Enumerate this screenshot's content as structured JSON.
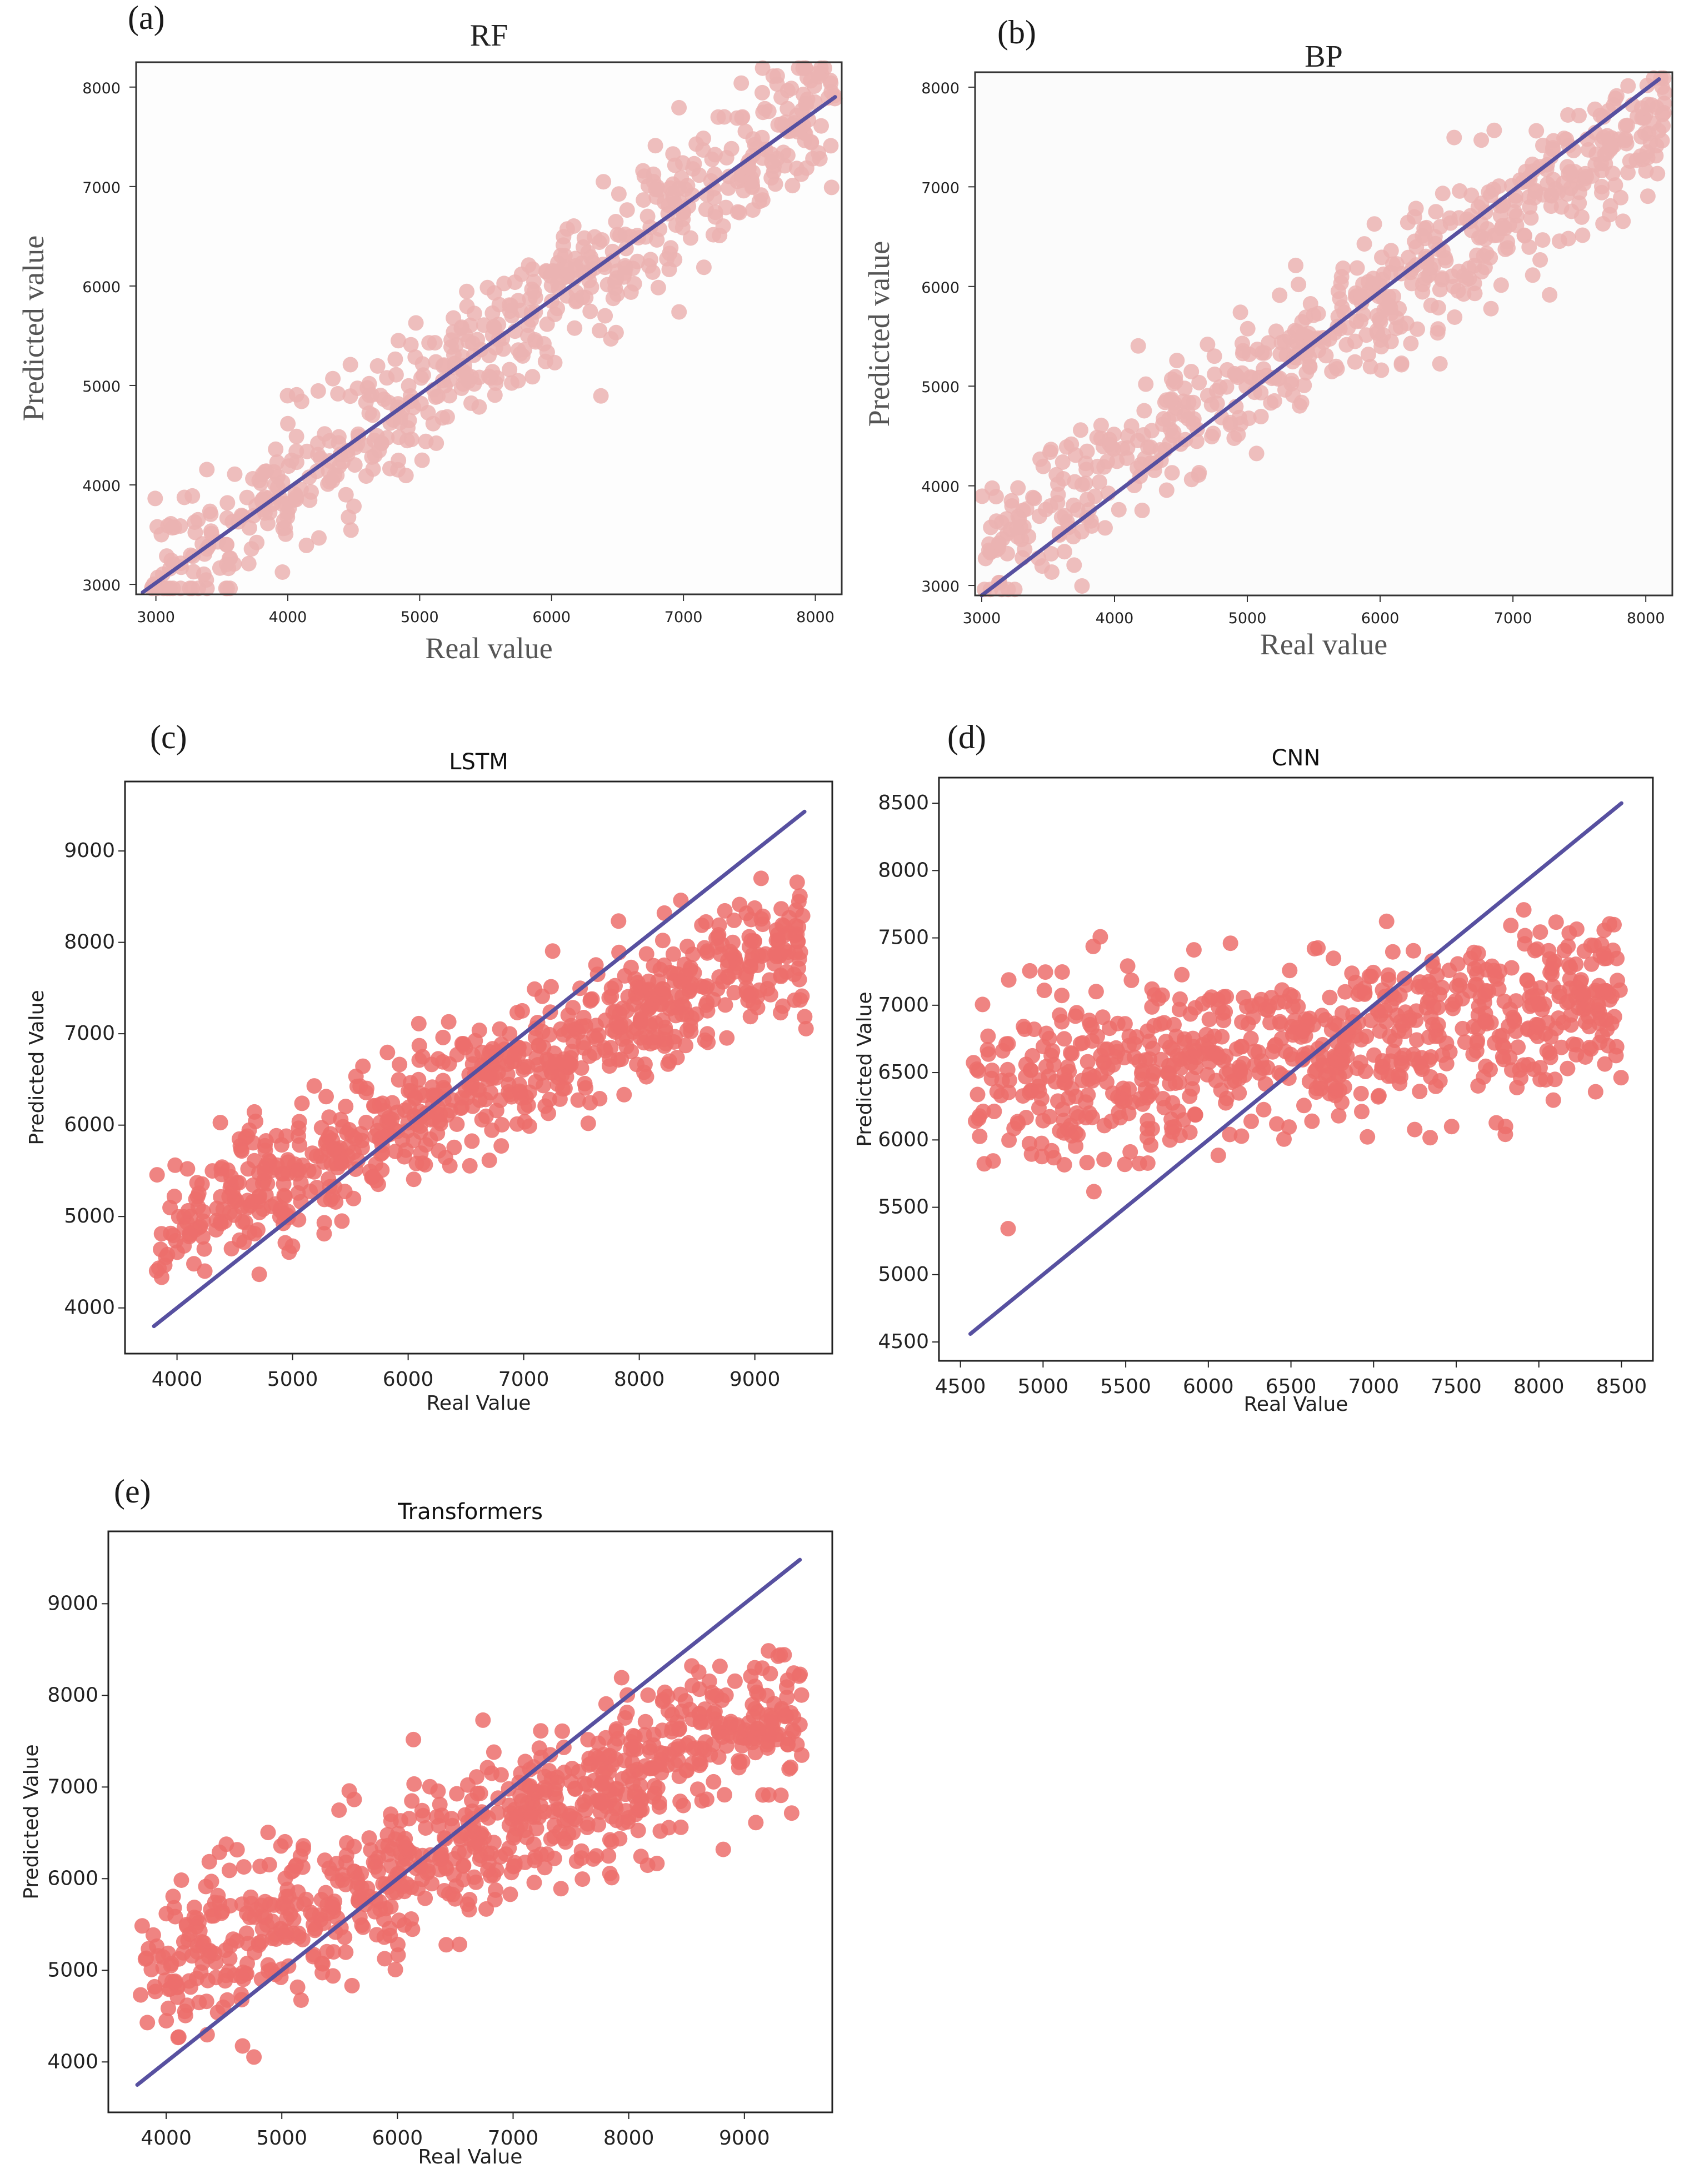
{
  "chart_data": [
    {
      "panel": "(a)",
      "type": "scatter",
      "title": "RF",
      "xlabel": "Real value",
      "ylabel": "Predicted value",
      "xlim": [
        2850,
        8200
      ],
      "ylim": [
        2900,
        8250
      ],
      "xticks": [
        3000,
        4000,
        5000,
        6000,
        7000,
        8000
      ],
      "yticks": [
        3000,
        4000,
        5000,
        6000,
        7000,
        8000
      ],
      "point_color": "#ebb3b1",
      "line": {
        "color": "#5750a0",
        "x": [
          2900,
          8150
        ],
        "y": [
          2920,
          7900
        ]
      },
      "points": {
        "n": 600,
        "x_range": [
          2950,
          8150
        ],
        "slope": 0.95,
        "intercept": 160,
        "noise_sd": 350,
        "seed": 11
      }
    },
    {
      "panel": "(b)",
      "type": "scatter",
      "title": "BP",
      "xlabel": "Real value",
      "ylabel": "Predicted value",
      "xlim": [
        2950,
        8200
      ],
      "ylim": [
        2900,
        8150
      ],
      "xticks": [
        3000,
        4000,
        5000,
        6000,
        7000,
        8000
      ],
      "yticks": [
        3000,
        4000,
        5000,
        6000,
        7000,
        8000
      ],
      "point_color": "#ebb3b1",
      "line": {
        "color": "#5750a0",
        "x": [
          3000,
          8100
        ],
        "y": [
          2900,
          8080
        ]
      },
      "points": {
        "n": 600,
        "x_range": [
          2980,
          8150
        ],
        "slope": 0.85,
        "intercept": 800,
        "noise_sd": 320,
        "seed": 22
      }
    },
    {
      "panel": "(c)",
      "type": "scatter",
      "title": "LSTM",
      "xlabel": "Real Value",
      "ylabel": "Predicted Value",
      "xlim": [
        3550,
        9670
      ],
      "ylim": [
        3500,
        9760
      ],
      "xticks": [
        4000,
        5000,
        6000,
        7000,
        8000,
        9000
      ],
      "yticks": [
        4000,
        5000,
        6000,
        7000,
        8000,
        9000
      ],
      "point_color": "#ec6e6c",
      "line": {
        "color": "#5750a0",
        "x": [
          3800,
          9430
        ],
        "y": [
          3800,
          9430
        ]
      },
      "points": {
        "n": 750,
        "x_range": [
          3800,
          9450
        ],
        "slope": 0.56,
        "intercept": 2700,
        "noise_sd": 360,
        "seed": 33
      }
    },
    {
      "panel": "(d)",
      "type": "scatter",
      "title": "CNN",
      "xlabel": "Real Value",
      "ylabel": "Predicted Value",
      "xlim": [
        4370,
        8690
      ],
      "ylim": [
        4360,
        8690
      ],
      "xticks": [
        4500,
        5000,
        5500,
        6000,
        6500,
        7000,
        7500,
        8000,
        8500
      ],
      "yticks": [
        4500,
        5000,
        5500,
        6000,
        6500,
        7000,
        7500,
        8000,
        8500
      ],
      "point_color": "#ec6e6c",
      "line": {
        "color": "#5750a0",
        "x": [
          4560,
          8500
        ],
        "y": [
          4560,
          8500
        ]
      },
      "points": {
        "n": 750,
        "x_range": [
          4560,
          8500
        ],
        "slope": 0.18,
        "intercept": 5500,
        "noise_sd": 320,
        "seed": 44
      }
    },
    {
      "panel": "(e)",
      "type": "scatter",
      "title": "Transformers",
      "xlabel": "Real Value",
      "ylabel": "Predicted Value",
      "xlim": [
        3500,
        9760
      ],
      "ylim": [
        3450,
        9790
      ],
      "xticks": [
        4000,
        5000,
        6000,
        7000,
        8000,
        9000
      ],
      "yticks": [
        4000,
        5000,
        6000,
        7000,
        8000,
        9000
      ],
      "point_color": "#ec6e6c",
      "line": {
        "color": "#5750a0",
        "x": [
          3750,
          9480
        ],
        "y": [
          3750,
          9480
        ]
      },
      "points": {
        "n": 800,
        "x_range": [
          3750,
          9500
        ],
        "slope": 0.52,
        "intercept": 2950,
        "noise_sd": 430,
        "seed": 55
      }
    }
  ]
}
